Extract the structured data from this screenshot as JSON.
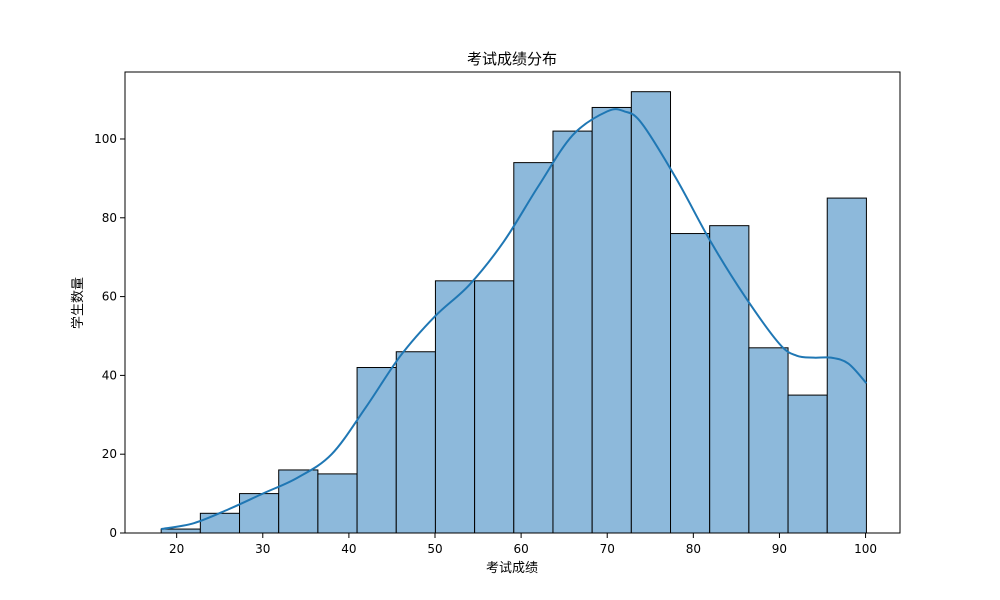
{
  "chart_data": {
    "type": "bar",
    "title": "考试成绩分布",
    "xlabel": "考试成绩",
    "ylabel": "学生数量",
    "xlim": [
      14,
      104
    ],
    "ylim": [
      0,
      117
    ],
    "xticks": [
      20,
      30,
      40,
      50,
      60,
      70,
      80,
      90,
      100
    ],
    "yticks": [
      0,
      20,
      40,
      60,
      80,
      100
    ],
    "bin_edges": [
      18.2,
      22.75,
      27.3,
      31.85,
      36.4,
      40.95,
      45.5,
      50.05,
      54.6,
      59.15,
      63.7,
      68.25,
      72.8,
      77.35,
      81.9,
      86.45,
      91.0,
      95.55,
      100.1
    ],
    "counts": [
      1,
      5,
      10,
      16,
      15,
      42,
      46,
      64,
      64,
      94,
      102,
      108,
      112,
      76,
      78,
      47,
      35,
      85
    ],
    "bar_color": "#8db9db",
    "bar_edge_color": "#000000",
    "kde_color": "#1f77b4",
    "kde": {
      "x": [
        18.2,
        22,
        26,
        30,
        34,
        38,
        42,
        46,
        50,
        54,
        58,
        62,
        66,
        70,
        72,
        74,
        78,
        82,
        86,
        90,
        92,
        94,
        96,
        98,
        100.1
      ],
      "y": [
        1,
        2.5,
        6,
        10,
        14,
        20,
        32,
        45,
        55,
        63,
        74,
        88,
        101,
        107,
        107,
        104,
        90,
        74,
        60,
        48,
        45,
        44.5,
        44.5,
        43,
        38
      ]
    },
    "grid": false,
    "legend": "none"
  }
}
